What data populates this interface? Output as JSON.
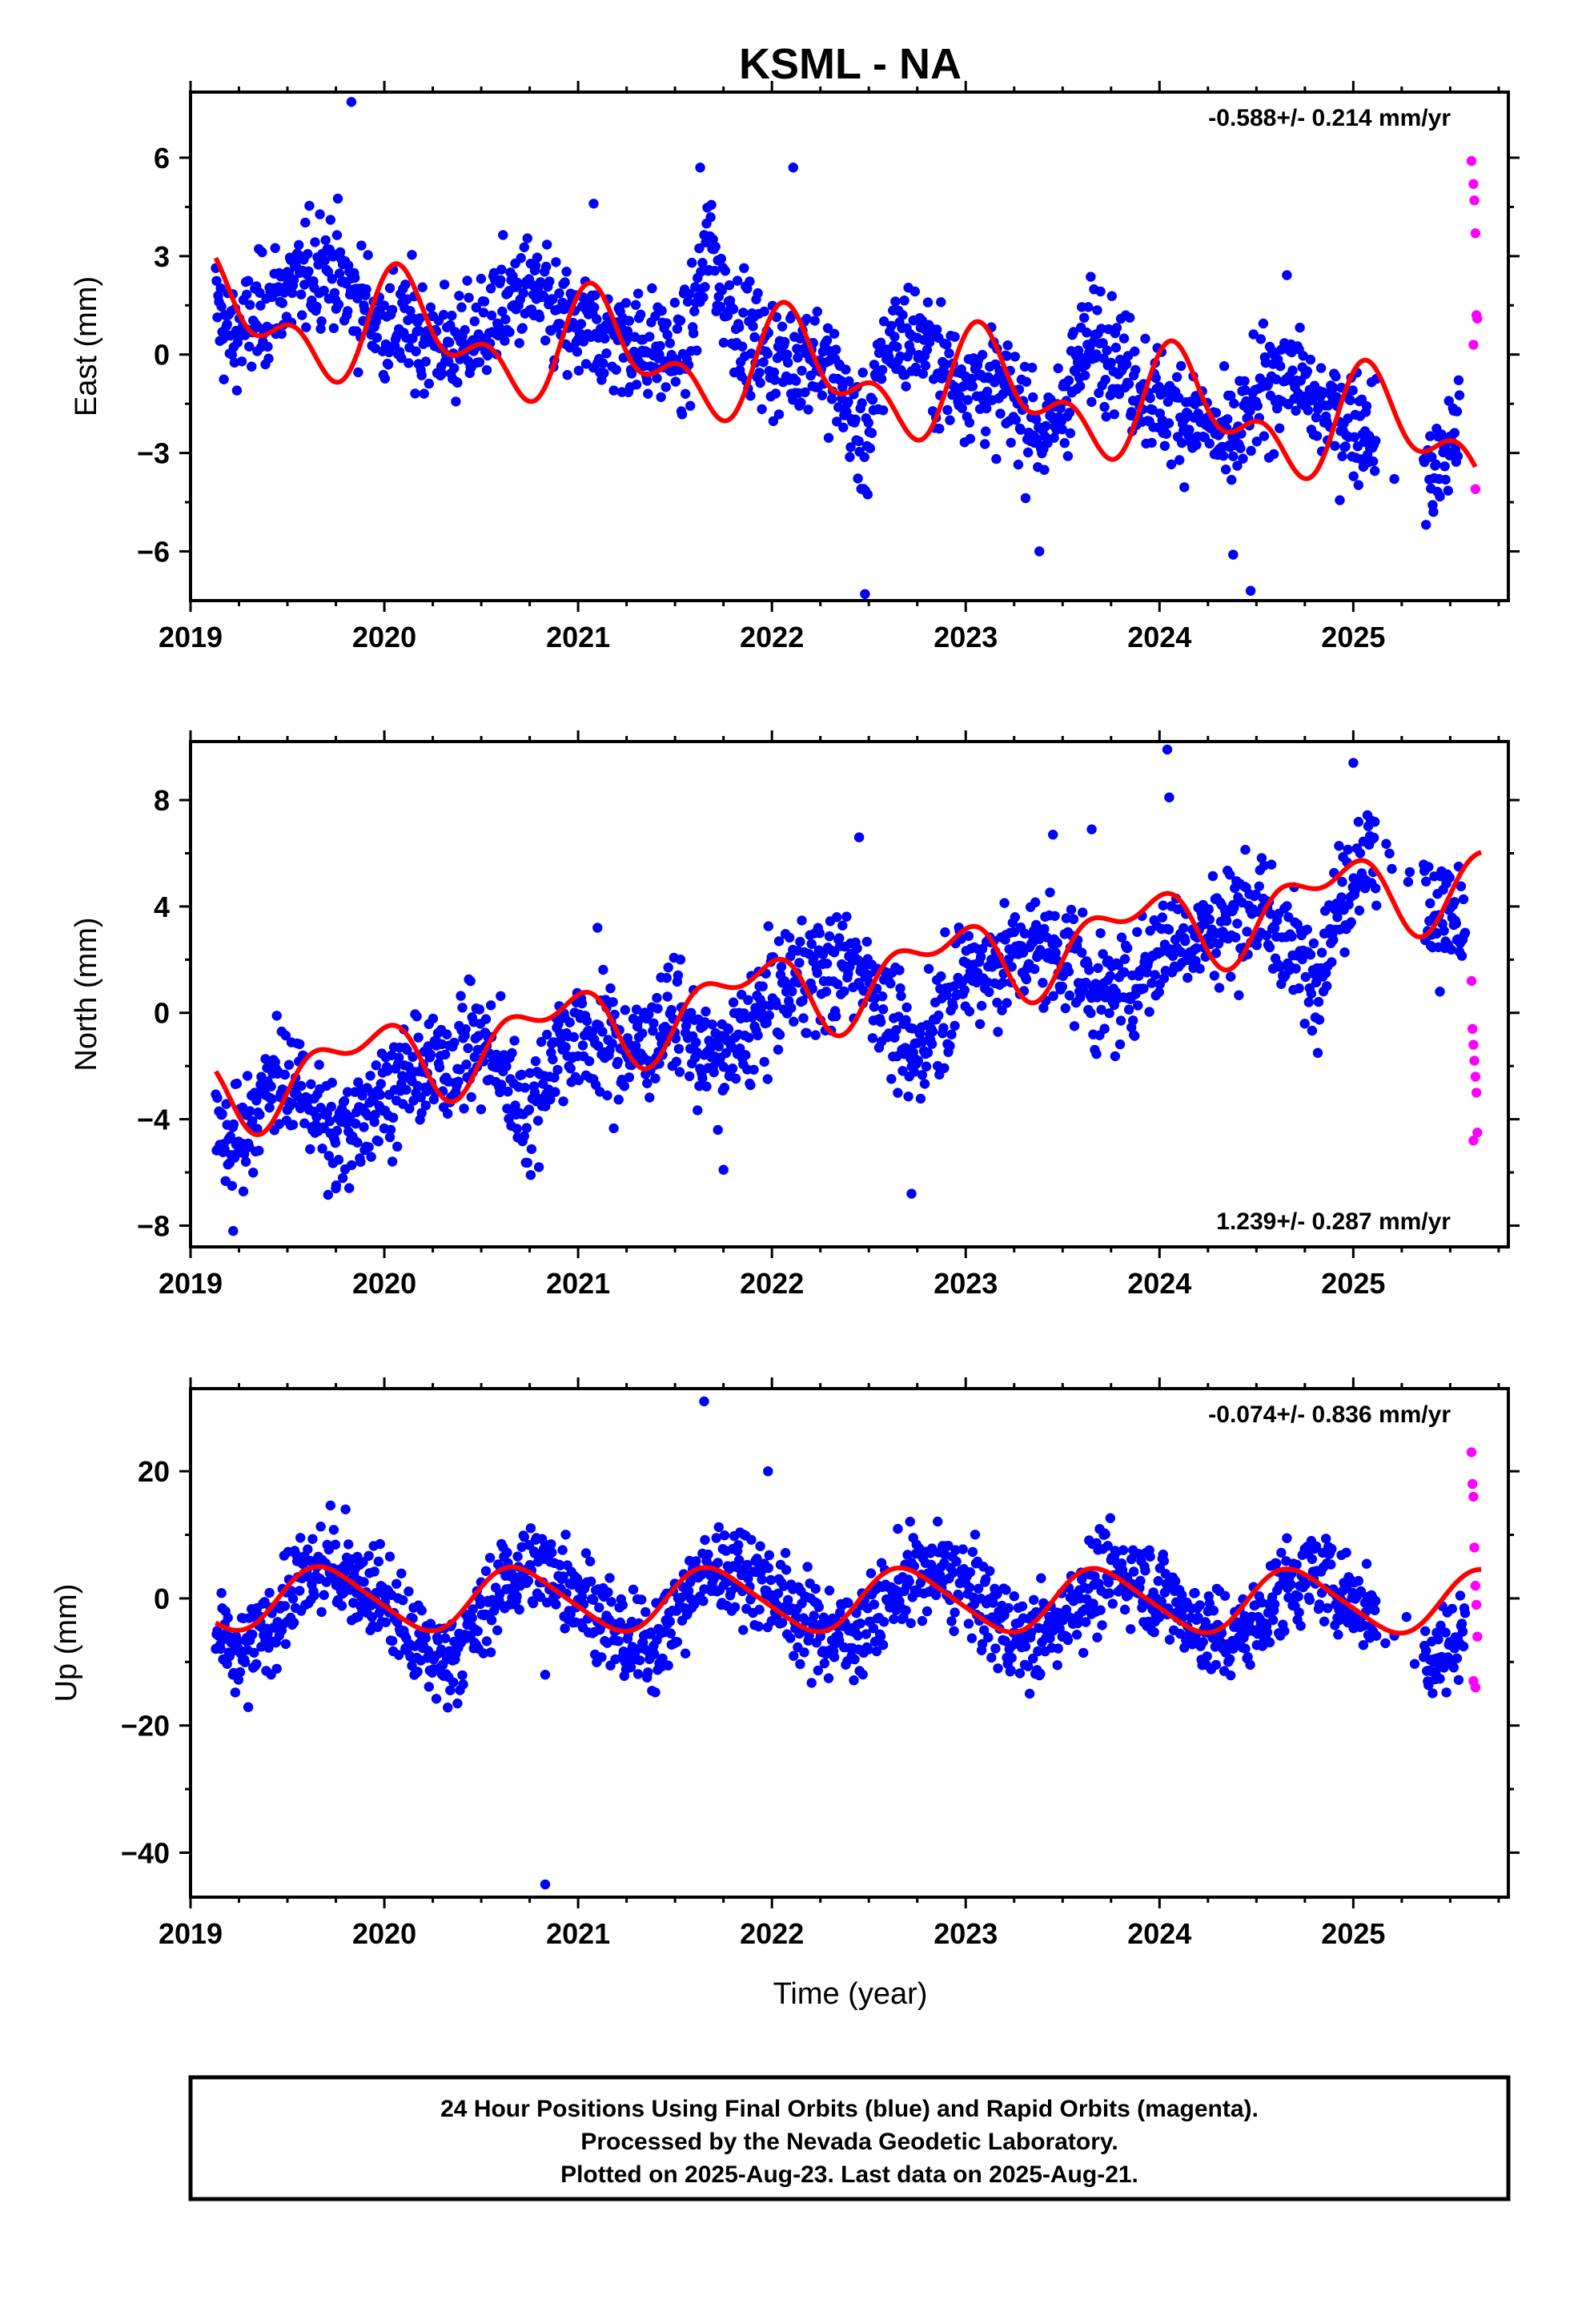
{
  "colors": {
    "final_orbits": "#0000ff",
    "rapid_orbits": "#ff00ff",
    "model_fit": "#ff0000",
    "axis": "#000000"
  },
  "chart_data": [
    {
      "type": "scatter",
      "title": "KSML - NA",
      "ylabel": "East (mm)",
      "xlabel": "",
      "xlim": [
        2019.0,
        2025.8
      ],
      "ylim": [
        -7.5,
        8.0
      ],
      "yticks": [
        -6,
        -3,
        0,
        3,
        6
      ],
      "xticks": [
        2019,
        2020,
        2021,
        2022,
        2023,
        2024,
        2025
      ],
      "grid": false,
      "rate_text": "-0.588+/- 0.214 mm/yr",
      "rate_position": "top-right",
      "model": {
        "intercept": 1.3,
        "trend": -0.588,
        "annual": [
          0.9,
          0.9
        ],
        "semiannual": [
          0.5,
          0.8
        ]
      },
      "final_series": {
        "name": "Final Orbits",
        "x": [
          2019.13,
          2019.2,
          2019.3,
          2019.45,
          2019.6,
          2019.7,
          2019.8,
          2020.0,
          2020.2,
          2020.4,
          2020.6,
          2020.75,
          2020.85,
          2021.0,
          2021.2,
          2021.4,
          2021.55,
          2021.68,
          2021.75,
          2021.9,
          2022.05,
          2022.2,
          2022.35,
          2022.48,
          2022.6,
          2022.75,
          2022.9,
          2023.1,
          2023.3,
          2023.42,
          2023.55,
          2023.68,
          2023.85,
          2024.0,
          2024.2,
          2024.35,
          2024.5,
          2024.65,
          2024.8,
          2025.0,
          2025.2,
          2025.4,
          2025.5,
          2025.55
        ],
        "y": [
          1.5,
          0.5,
          0.8,
          1.8,
          2.3,
          3.0,
          2.0,
          0.9,
          0.6,
          0.1,
          1.4,
          2.0,
          1.2,
          0.7,
          0.5,
          0.2,
          -0.2,
          3.5,
          1.8,
          0.4,
          -0.3,
          0.2,
          -1.0,
          -2.9,
          0.5,
          0.5,
          -0.6,
          -0.9,
          -1.6,
          -2.6,
          -0.8,
          0.8,
          -0.6,
          -1.5,
          -1.9,
          -2.9,
          -1.5,
          -0.2,
          -1.6,
          -2.0,
          -2.5,
          -3.6,
          -2.8,
          -1.6
        ]
      },
      "outliers": {
        "x": [
          2019.83,
          2021.08,
          2021.63,
          2022.11,
          2022.48,
          2023.38,
          2024.38,
          2024.47,
          2023.55
        ],
        "y": [
          7.7,
          4.6,
          5.7,
          5.7,
          -7.3,
          -6.0,
          -6.1,
          -7.2,
          0.6
        ]
      },
      "rapid_series": {
        "name": "Rapid Orbits",
        "x": [
          2025.61,
          2025.62,
          2025.625,
          2025.63,
          2025.635,
          2025.64,
          2025.62,
          2025.63
        ],
        "y": [
          5.9,
          5.2,
          4.7,
          3.7,
          1.2,
          1.1,
          0.3,
          -4.1
        ]
      }
    },
    {
      "type": "scatter",
      "title": "",
      "ylabel": "North (mm)",
      "xlabel": "",
      "xlim": [
        2019.0,
        2025.8
      ],
      "ylim": [
        -8.8,
        10.2
      ],
      "yticks": [
        -8,
        -4,
        0,
        4,
        8
      ],
      "xticks": [
        2019,
        2020,
        2021,
        2022,
        2023,
        2024,
        2025
      ],
      "grid": false,
      "rate_text": "1.239+/- 0.287 mm/yr",
      "rate_position": "bottom-right",
      "model": {
        "intercept": -3.0,
        "trend": 1.239,
        "annual": [
          -0.9,
          0.9
        ],
        "semiannual": [
          0.7,
          0.3
        ]
      },
      "final_series": {
        "name": "Final Orbits",
        "x": [
          2019.13,
          2019.2,
          2019.3,
          2019.45,
          2019.6,
          2019.75,
          2019.9,
          2020.1,
          2020.3,
          2020.45,
          2020.6,
          2020.75,
          2020.9,
          2021.1,
          2021.3,
          2021.5,
          2021.7,
          2021.85,
          2022.0,
          2022.15,
          2022.3,
          2022.45,
          2022.6,
          2022.72,
          2022.85,
          2023.0,
          2023.2,
          2023.4,
          2023.55,
          2023.7,
          2023.85,
          2024.0,
          2024.2,
          2024.35,
          2024.5,
          2024.65,
          2024.8,
          2024.95,
          2025.05,
          2025.4,
          2025.5,
          2025.58
        ],
        "y": [
          -4.5,
          -5.0,
          -4.0,
          -2.5,
          -3.0,
          -5.0,
          -3.5,
          -2.5,
          -2.0,
          -1.0,
          -2.0,
          -4.0,
          -1.0,
          -1.0,
          -1.5,
          0.0,
          -2.0,
          -1.0,
          0.5,
          1.5,
          1.5,
          2.0,
          0.0,
          -2.0,
          0.0,
          1.5,
          2.0,
          2.5,
          2.0,
          0.5,
          1.0,
          2.5,
          3.0,
          3.5,
          4.0,
          2.5,
          1.5,
          4.5,
          6.0,
          4.0,
          3.5,
          3.0
        ]
      },
      "outliers": {
        "x": [
          2019.22,
          2019.75,
          2021.1,
          2021.75,
          2022.45,
          2022.72,
          2023.45,
          2023.65,
          2024.04,
          2024.05,
          2025.0
        ],
        "y": [
          -8.2,
          -6.6,
          3.2,
          -5.9,
          6.6,
          -6.8,
          6.7,
          6.9,
          9.9,
          8.1,
          9.4
        ]
      },
      "rapid_series": {
        "name": "Rapid Orbits",
        "x": [
          2025.61,
          2025.615,
          2025.62,
          2025.625,
          2025.63,
          2025.635,
          2025.64,
          2025.62
        ],
        "y": [
          1.2,
          -0.6,
          -1.2,
          -1.8,
          -2.4,
          -3.0,
          -4.5,
          -4.8
        ]
      }
    },
    {
      "type": "scatter",
      "title": "",
      "ylabel": "Up (mm)",
      "xlabel": "Time (year)",
      "xlim": [
        2019.0,
        2025.8
      ],
      "ylim": [
        -47,
        33
      ],
      "yticks": [
        -40,
        -20,
        0,
        20
      ],
      "xticks": [
        2019,
        2020,
        2021,
        2022,
        2023,
        2024,
        2025
      ],
      "grid": false,
      "rate_text": "-0.074+/- 0.836 mm/yr",
      "rate_position": "top-right",
      "model": {
        "intercept": 0.0,
        "trend": -0.074,
        "annual": [
          -4.6,
          -1.5
        ],
        "semiannual": [
          0.6,
          0.4
        ]
      },
      "final_series": {
        "name": "Final Orbits",
        "x": [
          2019.13,
          2019.25,
          2019.4,
          2019.55,
          2019.7,
          2019.85,
          2020.0,
          2020.15,
          2020.3,
          2020.45,
          2020.6,
          2020.75,
          2020.9,
          2021.05,
          2021.2,
          2021.35,
          2021.5,
          2021.65,
          2021.8,
          2021.95,
          2022.1,
          2022.25,
          2022.4,
          2022.55,
          2022.7,
          2022.85,
          2023.0,
          2023.15,
          2023.3,
          2023.45,
          2023.6,
          2023.75,
          2023.9,
          2024.05,
          2024.2,
          2024.35,
          2024.5,
          2024.65,
          2024.8,
          2024.95,
          2025.4,
          2025.5,
          2025.58
        ],
        "y": [
          -6,
          -10,
          -5,
          2,
          5,
          3,
          0,
          -7,
          -10,
          -6,
          2,
          5,
          4,
          0,
          -6,
          -8,
          -3,
          4,
          5,
          3,
          -2,
          -5,
          -6,
          -2,
          3,
          4,
          2,
          -3,
          -7,
          -5,
          1,
          4,
          3,
          0,
          -4,
          -7,
          -4,
          2,
          4,
          1,
          -9,
          -8,
          -3
        ]
      },
      "outliers": {
        "x": [
          2021.65,
          2020.83,
          2021.98,
          2020.83,
          2019.8
        ],
        "y": [
          31,
          -45,
          20,
          -12,
          14
        ]
      },
      "rapid_series": {
        "name": "Rapid Orbits",
        "x": [
          2025.61,
          2025.615,
          2025.62,
          2025.625,
          2025.63,
          2025.635,
          2025.64,
          2025.62,
          2025.63
        ],
        "y": [
          23,
          18,
          16,
          8,
          2,
          -1,
          -6,
          -13,
          -14
        ]
      }
    }
  ],
  "footer": {
    "line1": "24 Hour Positions Using Final Orbits (blue) and Rapid Orbits (magenta).",
    "line2": "Processed by the Nevada Geodetic Laboratory.",
    "line3": "Plotted on 2025-Aug-23. Last data on 2025-Aug-21."
  }
}
